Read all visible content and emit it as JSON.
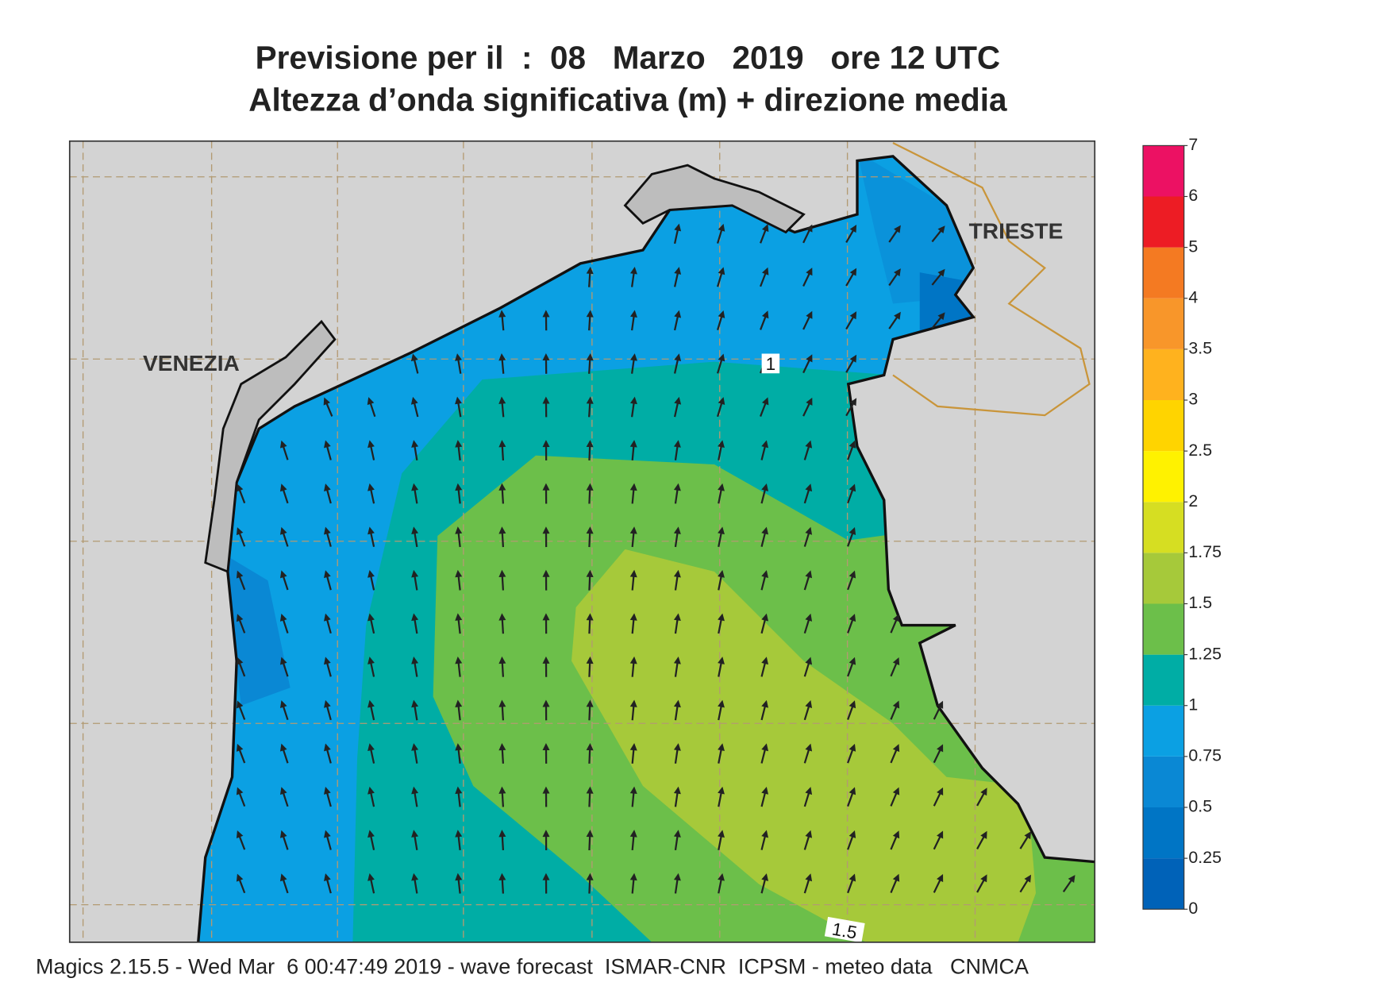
{
  "header": {
    "line1": "Previsione per il  :  08   Marzo   2019   ore 12 UTC",
    "line2": "Altezza d’onda significativa (m) + direzione media"
  },
  "places": [
    "VENEZIA",
    "TRIESTE"
  ],
  "contour_labels": [
    "1",
    "1.5"
  ],
  "legend": {
    "levels": [
      0,
      0.25,
      0.5,
      0.75,
      1,
      1.25,
      1.5,
      1.75,
      2,
      2.5,
      3,
      3.5,
      4,
      5,
      6,
      7
    ],
    "colors": [
      "#0062b8",
      "#0075c5",
      "#0a88d4",
      "#0ba0e3",
      "#00ada5",
      "#6cbf4a",
      "#a6c93a",
      "#d6de22",
      "#fff200",
      "#ffd400",
      "#ffb21e",
      "#f8962a",
      "#f47a22",
      "#ed1c24",
      "#ec1163"
    ]
  },
  "footer": "Magics 2.15.5 - Wed Mar  6 00:47:49 2019 - wave forecast  ISMAR-CNR  ICPSM - meteo data   CNMCA"
}
